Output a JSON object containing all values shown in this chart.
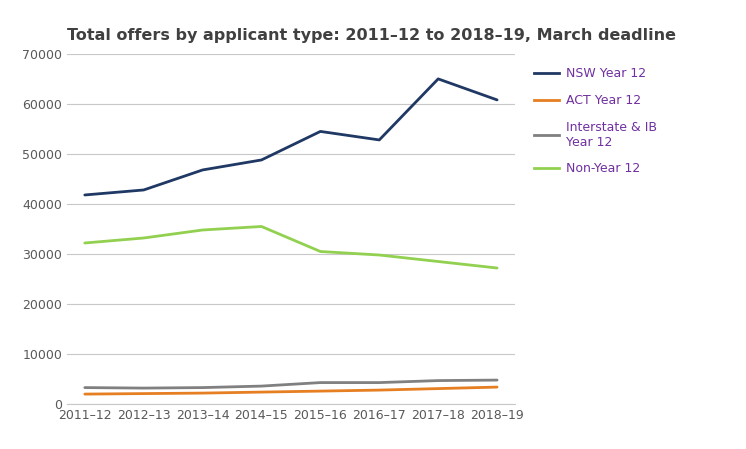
{
  "title": "Total offers by applicant type: 2011–12 to 2018–19, March deadline",
  "x_labels": [
    "2011–12",
    "2012–13",
    "2013–14",
    "2014–15",
    "2015–16",
    "2016–17",
    "2017–18",
    "2018–19"
  ],
  "series": {
    "NSW Year 12": {
      "values": [
        41800,
        42800,
        46800,
        48800,
        54500,
        52800,
        65000,
        60800
      ],
      "color": "#1f3864",
      "linewidth": 2.0
    },
    "ACT Year 12": {
      "values": [
        2000,
        2100,
        2200,
        2400,
        2600,
        2800,
        3100,
        3400
      ],
      "color": "#e67e22",
      "linewidth": 2.0
    },
    "Interstate & IB\nYear 12": {
      "values": [
        3300,
        3200,
        3300,
        3600,
        4300,
        4300,
        4700,
        4800
      ],
      "color": "#808080",
      "linewidth": 2.0
    },
    "Non-Year 12": {
      "values": [
        32200,
        33200,
        34800,
        35500,
        30500,
        29800,
        28500,
        27200
      ],
      "color": "#92d050",
      "linewidth": 2.0
    }
  },
  "ylim": [
    0,
    70000
  ],
  "yticks": [
    0,
    10000,
    20000,
    30000,
    40000,
    50000,
    60000,
    70000
  ],
  "ytick_labels": [
    "0",
    "10000",
    "20000",
    "30000",
    "40000",
    "50000",
    "60000",
    "70000"
  ],
  "title_color": "#404040",
  "title_fontsize": 11.5,
  "tick_color": "#595959",
  "tick_fontsize": 9,
  "grid_color": "#c8c8c8",
  "background_color": "#ffffff",
  "legend_label_color": "#7030a0",
  "legend_fontsize": 9,
  "legend_labelspacing": 1.1,
  "legend_handlelength": 2.0
}
